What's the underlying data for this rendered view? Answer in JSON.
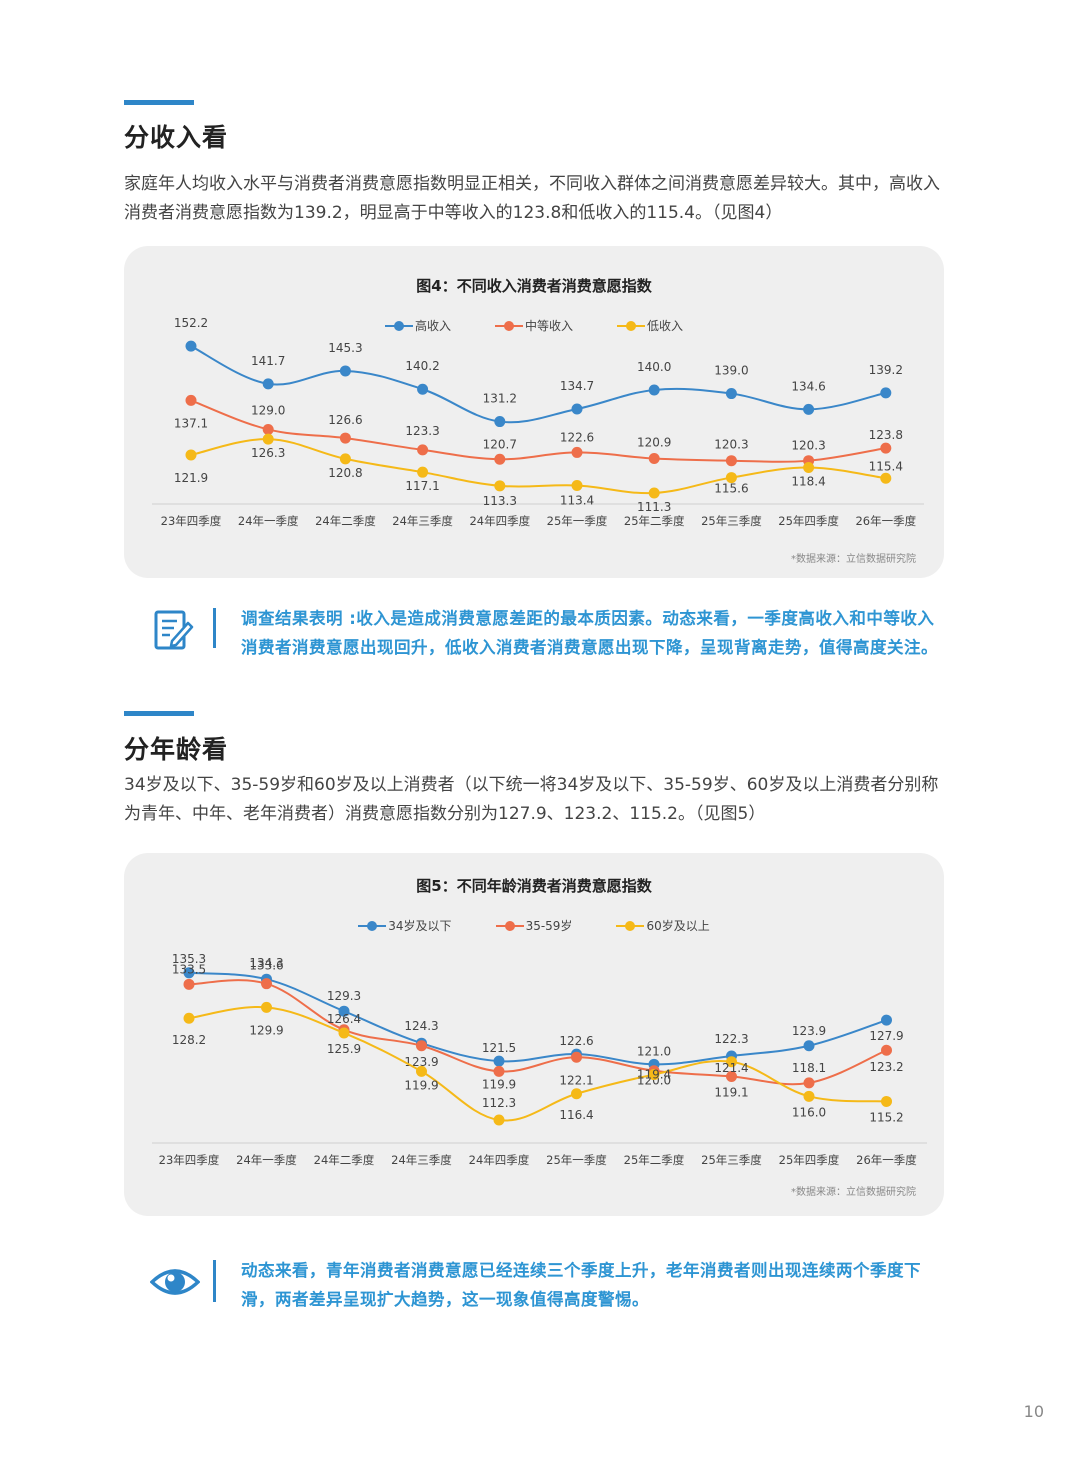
{
  "section1": {
    "title": "分收入看",
    "paragraph": "家庭年人均收入水平与消费者消费意愿指数明显正相关，不同收入群体之间消费意愿差异较大。其中，高收入消费者消费意愿指数为139.2，明显高于中等收入的123.8和低收入的115.4。（见图4）",
    "note": "调查结果表明 :收入是造成消费意愿差距的最本质因素。动态来看，一季度高收入和中等收入消费者消费意愿出现回升，低收入消费者消费意愿出现下降，呈现背离走势，值得高度关注。",
    "note_icon": "document-edit-icon"
  },
  "section2": {
    "title": "分年龄看",
    "paragraph": "34岁及以下、35-59岁和60岁及以上消费者（以下统一将34岁及以下、35-59岁、60岁及以上消费者分别称为青年、中年、老年消费者）消费意愿指数分别为127.9、123.2、115.2。（见图5）",
    "note": "动态来看，青年消费者消费意愿已经连续三个季度上升，老年消费者则出现连续两个季度下滑，两者差异呈现扩大趋势，这一现象值得高度警惕。",
    "note_icon": "eye-icon"
  },
  "colors": {
    "accent": "#2e86c8",
    "blue": "#3a87c9",
    "orange": "#ee6e4a",
    "yellow": "#f5b918",
    "note_text": "#2e95d3"
  },
  "page_number": "10",
  "chart_data": [
    {
      "type": "line",
      "title": "图4：不同收入消费者消费意愿指数",
      "source": "*数据来源：立信数据研究院",
      "grid": false,
      "legend_position": "top",
      "categories": [
        "23年四季度",
        "24年一季度",
        "24年二季度",
        "24年三季度",
        "24年四季度",
        "25年一季度",
        "25年二季度",
        "25年三季度",
        "25年四季度",
        "26年一季度"
      ],
      "series": [
        {
          "name": "高收入",
          "color": "#3a87c9",
          "values": [
            152.2,
            141.7,
            145.3,
            140.2,
            131.2,
            134.7,
            140.0,
            139.0,
            134.6,
            139.2
          ]
        },
        {
          "name": "中等收入",
          "color": "#ee6e4a",
          "values": [
            137.1,
            129.0,
            126.6,
            123.3,
            120.7,
            122.6,
            120.9,
            120.3,
            120.3,
            123.8
          ]
        },
        {
          "name": "低收入",
          "color": "#f5b918",
          "values": [
            121.9,
            126.3,
            120.8,
            117.1,
            113.3,
            113.4,
            111.3,
            115.6,
            118.4,
            115.4
          ]
        }
      ]
    },
    {
      "type": "line",
      "title": "图5：不同年龄消费者消费意愿指数",
      "source": "*数据来源：立信数据研究院",
      "grid": false,
      "legend_position": "top",
      "categories": [
        "23年四季度",
        "24年一季度",
        "24年二季度",
        "24年三季度",
        "24年四季度",
        "25年一季度",
        "25年二季度",
        "25年三季度",
        "25年四季度",
        "26年一季度"
      ],
      "series": [
        {
          "name": "34岁及以下",
          "color": "#3a87c9",
          "values": [
            135.3,
            134.3,
            129.3,
            124.3,
            121.5,
            122.6,
            121.0,
            122.3,
            123.9,
            127.9
          ]
        },
        {
          "name": "35-59岁",
          "color": "#ee6e4a",
          "values": [
            133.5,
            133.6,
            126.4,
            123.9,
            119.9,
            122.1,
            120.0,
            119.1,
            118.1,
            123.2
          ]
        },
        {
          "name": "60岁及以上",
          "color": "#f5b918",
          "values": [
            128.2,
            129.9,
            125.9,
            119.9,
            112.3,
            116.4,
            119.4,
            121.4,
            116.0,
            115.2
          ]
        }
      ]
    }
  ]
}
